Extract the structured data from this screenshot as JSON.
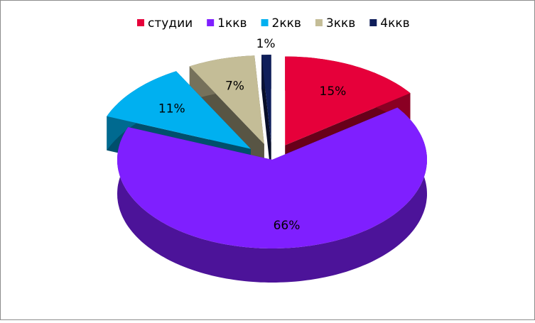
{
  "chart_data": {
    "type": "pie3d",
    "categories": [
      "студии",
      "1ккв",
      "2ккв",
      "3ккв",
      "4ккв"
    ],
    "values": [
      15,
      66,
      11,
      7,
      1
    ],
    "value_labels": [
      "15%",
      "66%",
      "11%",
      "7%",
      "1%"
    ],
    "colors": [
      "#e6003a",
      "#7f1fff",
      "#00b0f0",
      "#c4bd97",
      "#0f1e5a"
    ],
    "exploded": [
      true,
      false,
      true,
      true,
      true
    ],
    "legend": "top"
  }
}
